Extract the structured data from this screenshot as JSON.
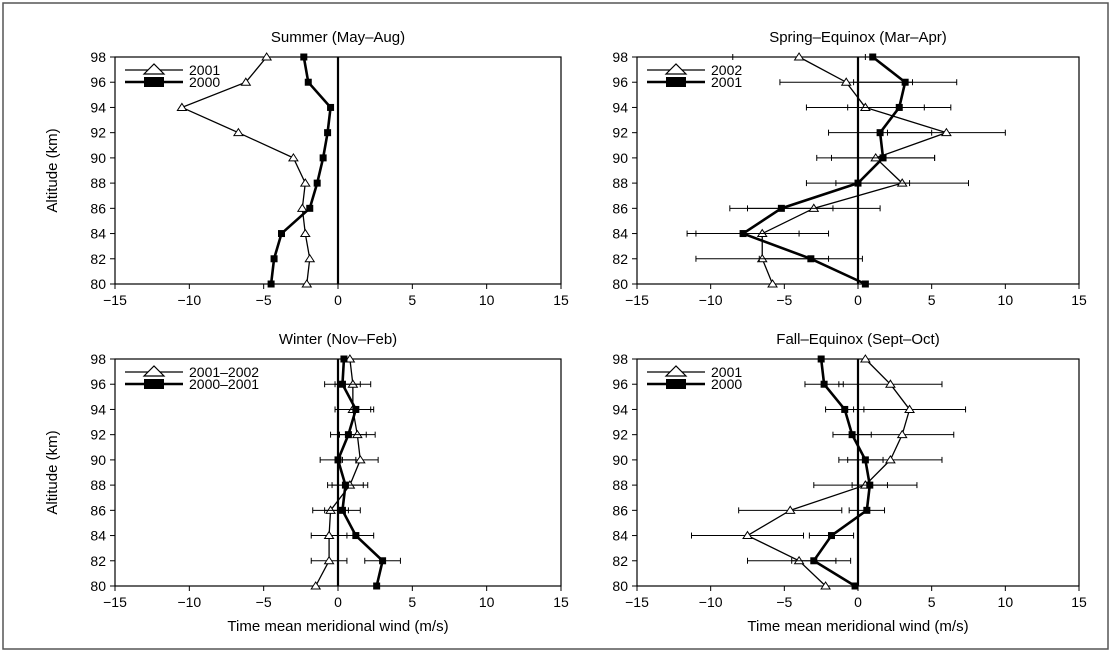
{
  "chart_data": [
    {
      "type": "line",
      "title": "Summer (May–Aug)",
      "xlabel": "",
      "ylabel": "Altitude (km)",
      "xlim": [
        -15,
        15
      ],
      "ylim": [
        80,
        98
      ],
      "xticks": [
        -15,
        -10,
        -5,
        0,
        5,
        10,
        15
      ],
      "yticks": [
        80,
        82,
        84,
        86,
        88,
        90,
        92,
        94,
        96,
        98
      ],
      "legend_position": "top-left",
      "series": [
        {
          "name": "2001",
          "marker": "open",
          "x": [
            -2.1,
            -1.9,
            -2.2,
            -2.4,
            -2.2,
            -3.0,
            -6.7,
            -10.5,
            -6.2,
            -4.8
          ],
          "y": [
            80,
            82,
            84,
            86,
            88,
            90,
            92,
            94,
            96,
            98
          ],
          "xerr": [
            0,
            0,
            0,
            0,
            0,
            0,
            0,
            0,
            0,
            0
          ]
        },
        {
          "name": "2000",
          "marker": "filled",
          "x": [
            -4.5,
            -4.3,
            -3.8,
            -1.9,
            -1.4,
            -1.0,
            -0.7,
            -0.5,
            -2.0,
            -2.3
          ],
          "y": [
            80,
            82,
            84,
            86,
            88,
            90,
            92,
            94,
            96,
            98
          ],
          "xerr": [
            0,
            0,
            0,
            0,
            0,
            0,
            0,
            0,
            0,
            0
          ]
        }
      ]
    },
    {
      "type": "line",
      "title": "Spring–Equinox (Mar–Apr)",
      "xlabel": "",
      "ylabel": "",
      "xlim": [
        -15,
        15
      ],
      "ylim": [
        80,
        98
      ],
      "xticks": [
        -15,
        -10,
        -5,
        0,
        5,
        10,
        15
      ],
      "yticks": [
        80,
        82,
        84,
        86,
        88,
        90,
        92,
        94,
        96,
        98
      ],
      "legend_position": "top-left",
      "series": [
        {
          "name": "2002",
          "marker": "open",
          "x": [
            -5.8,
            -6.5,
            -6.5,
            -3.0,
            3.0,
            1.2,
            6.0,
            0.5,
            -0.8,
            -4.0
          ],
          "y": [
            80,
            82,
            84,
            86,
            88,
            90,
            92,
            94,
            96,
            98
          ],
          "xerr": [
            0,
            4.5,
            4.5,
            4.5,
            4.5,
            4.0,
            4.0,
            4.0,
            4.5,
            4.5
          ]
        },
        {
          "name": "2001",
          "marker": "filled",
          "x": [
            0.5,
            -3.2,
            -7.8,
            -5.2,
            0.0,
            1.7,
            1.5,
            2.8,
            3.2,
            1.0
          ],
          "y": [
            80,
            82,
            84,
            86,
            88,
            90,
            92,
            94,
            96,
            98
          ],
          "xerr": [
            0,
            3.5,
            3.8,
            3.5,
            3.5,
            3.5,
            3.5,
            3.5,
            3.5,
            0
          ]
        }
      ]
    },
    {
      "type": "line",
      "title": "Winter (Nov–Feb)",
      "xlabel": "Time mean meridional wind (m/s)",
      "ylabel": "Altitude (km)",
      "xlim": [
        -15,
        15
      ],
      "ylim": [
        80,
        98
      ],
      "xticks": [
        -15,
        -10,
        -5,
        0,
        5,
        10,
        15
      ],
      "yticks": [
        80,
        82,
        84,
        86,
        88,
        90,
        92,
        94,
        96,
        98
      ],
      "legend_position": "top-left",
      "series": [
        {
          "name": "2001–2002",
          "marker": "open",
          "x": [
            -1.5,
            -0.6,
            -0.6,
            -0.5,
            0.8,
            1.5,
            1.3,
            1.0,
            1.0,
            0.8
          ],
          "y": [
            80,
            82,
            84,
            86,
            88,
            90,
            92,
            94,
            96,
            98
          ],
          "xerr": [
            0,
            1.2,
            1.2,
            1.2,
            1.2,
            1.2,
            1.2,
            1.2,
            1.2,
            0
          ]
        },
        {
          "name": "2000–2001",
          "marker": "filled",
          "x": [
            2.6,
            3.0,
            1.2,
            0.3,
            0.5,
            0.0,
            0.7,
            1.2,
            0.3,
            0.4
          ],
          "y": [
            80,
            82,
            84,
            86,
            88,
            90,
            92,
            94,
            96,
            98
          ],
          "xerr": [
            0,
            1.2,
            1.2,
            1.2,
            1.2,
            1.2,
            1.2,
            1.2,
            1.2,
            0
          ]
        }
      ]
    },
    {
      "type": "line",
      "title": "Fall–Equinox (Sept–Oct)",
      "xlabel": "Time mean meridional wind (m/s)",
      "ylabel": "",
      "xlim": [
        -15,
        15
      ],
      "ylim": [
        80,
        98
      ],
      "xticks": [
        -15,
        -10,
        -5,
        0,
        5,
        10,
        15
      ],
      "yticks": [
        80,
        82,
        84,
        86,
        88,
        90,
        92,
        94,
        96,
        98
      ],
      "legend_position": "top-left",
      "series": [
        {
          "name": "2001",
          "marker": "open",
          "x": [
            -2.2,
            -4.0,
            -7.5,
            -4.6,
            0.5,
            2.2,
            3.0,
            3.5,
            2.2,
            0.5
          ],
          "y": [
            80,
            82,
            84,
            86,
            88,
            90,
            92,
            94,
            96,
            98
          ],
          "xerr": [
            0,
            3.5,
            3.8,
            3.5,
            3.5,
            3.5,
            3.5,
            3.8,
            3.5,
            0
          ]
        },
        {
          "name": "2000",
          "marker": "filled",
          "x": [
            -0.2,
            -3.0,
            -1.8,
            0.6,
            0.8,
            0.5,
            -0.4,
            -0.9,
            -2.3,
            -2.5
          ],
          "y": [
            80,
            82,
            84,
            86,
            88,
            90,
            92,
            94,
            96,
            98
          ],
          "xerr": [
            0,
            1.5,
            1.5,
            1.2,
            1.2,
            1.2,
            1.3,
            1.3,
            1.3,
            0
          ]
        }
      ]
    }
  ]
}
